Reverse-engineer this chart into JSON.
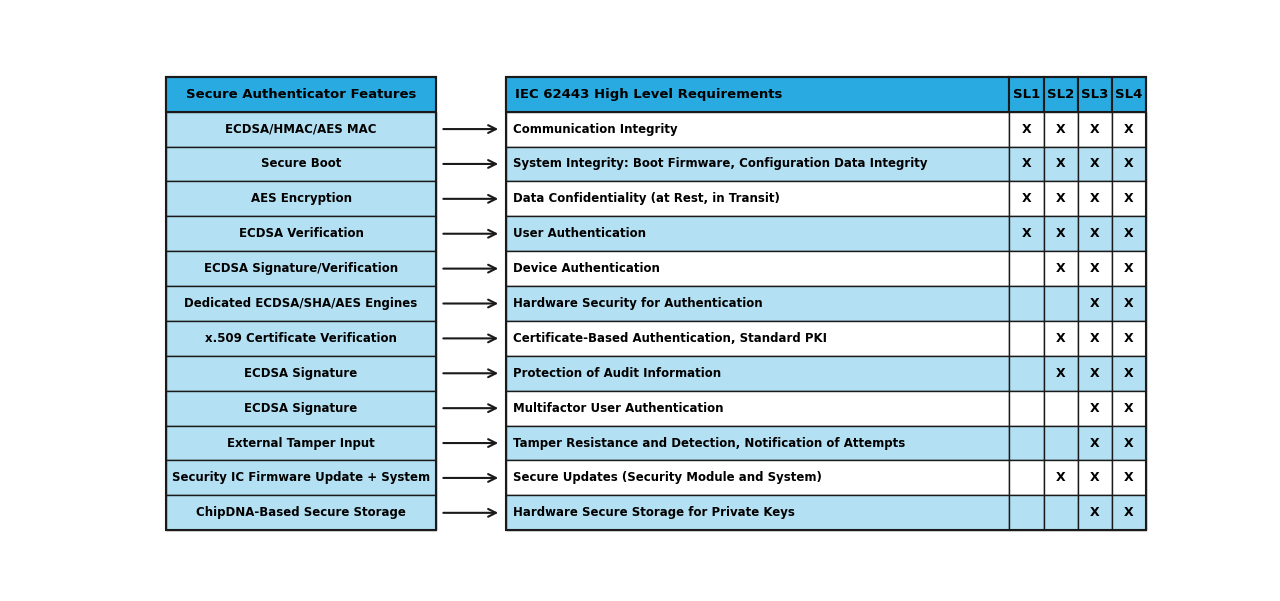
{
  "left_header": "Secure Authenticator Features",
  "right_header": "IEC 62443 High Level Requirements",
  "sl_headers": [
    "SL1",
    "SL2",
    "SL3",
    "SL4"
  ],
  "rows": [
    {
      "feature": "ECDSA/HMAC/AES MAC",
      "requirement": "Communication Integrity",
      "sl": [
        true,
        true,
        true,
        true
      ]
    },
    {
      "feature": "Secure Boot",
      "requirement": "System Integrity: Boot Firmware, Configuration Data Integrity",
      "sl": [
        true,
        true,
        true,
        true
      ]
    },
    {
      "feature": "AES Encryption",
      "requirement": "Data Confidentiality (at Rest, in Transit)",
      "sl": [
        true,
        true,
        true,
        true
      ]
    },
    {
      "feature": "ECDSA Verification",
      "requirement": "User Authentication",
      "sl": [
        true,
        true,
        true,
        true
      ]
    },
    {
      "feature": "ECDSA Signature/Verification",
      "requirement": "Device Authentication",
      "sl": [
        false,
        true,
        true,
        true
      ]
    },
    {
      "feature": "Dedicated ECDSA/SHA/AES Engines",
      "requirement": "Hardware Security for Authentication",
      "sl": [
        false,
        false,
        true,
        true
      ]
    },
    {
      "feature": "x.509 Certificate Verification",
      "requirement": "Certificate-Based Authentication, Standard PKI",
      "sl": [
        false,
        true,
        true,
        true
      ]
    },
    {
      "feature": "ECDSA Signature",
      "requirement": "Protection of Audit Information",
      "sl": [
        false,
        true,
        true,
        true
      ]
    },
    {
      "feature": "ECDSA Signature",
      "requirement": "Multifactor User Authentication",
      "sl": [
        false,
        false,
        true,
        true
      ]
    },
    {
      "feature": "External Tamper Input",
      "requirement": "Tamper Resistance and Detection, Notification of Attempts",
      "sl": [
        false,
        false,
        true,
        true
      ]
    },
    {
      "feature": "Security IC Firmware Update + System",
      "requirement": "Secure Updates (Security Module and System)",
      "sl": [
        false,
        true,
        true,
        true
      ]
    },
    {
      "feature": "ChipDNA-Based Secure Storage",
      "requirement": "Hardware Secure Storage for Private Keys",
      "sl": [
        false,
        false,
        true,
        true
      ]
    }
  ],
  "header_bg": "#29ABE2",
  "row_bg_light": "#B3E0F2",
  "row_bg_white": "#FFFFFF",
  "border_color": "#1A1A1A",
  "arrow_color": "#1A1A1A"
}
